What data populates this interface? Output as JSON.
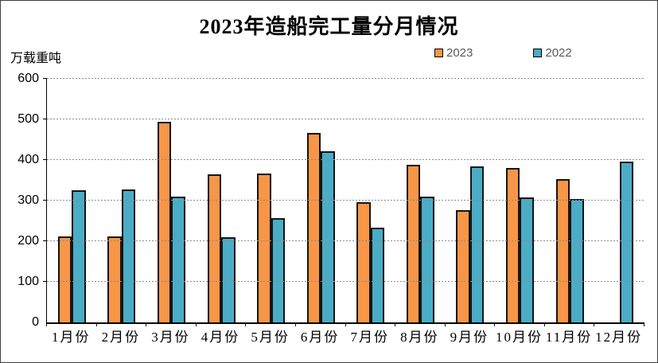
{
  "title": "2023年造船完工量分月情况",
  "unit_label": "万载重吨",
  "legend": [
    {
      "label": "2023",
      "color": "#F79646"
    },
    {
      "label": "2022",
      "color": "#4BACC6"
    }
  ],
  "colors": {
    "series_2023": "#F79646",
    "series_2022": "#4BACC6",
    "bar_border": "#141414",
    "gridline": "#8c8c8c",
    "axis": "#000000",
    "legend_text": "#595959"
  },
  "chart_data": {
    "type": "bar",
    "title": "2023年造船完工量分月情况",
    "ylabel": "万载重吨",
    "xlabel": "",
    "categories": [
      "1月份",
      "2月份",
      "3月份",
      "4月份",
      "5月份",
      "6月份",
      "7月份",
      "8月份",
      "9月份",
      "10月份",
      "11月份",
      "12月份"
    ],
    "series": [
      {
        "name": "2023",
        "color": "#F79646",
        "values": [
          211,
          211,
          495,
          364,
          367,
          466,
          296,
          388,
          276,
          381,
          352,
          null
        ]
      },
      {
        "name": "2022",
        "color": "#4BACC6",
        "values": [
          325,
          328,
          309,
          209,
          256,
          421,
          234,
          310,
          385,
          308,
          303,
          396
        ]
      }
    ],
    "ylim": [
      0,
      600
    ],
    "ytick_step": 100,
    "grid": "horizontal-dashed",
    "legend_position": "top-right"
  }
}
